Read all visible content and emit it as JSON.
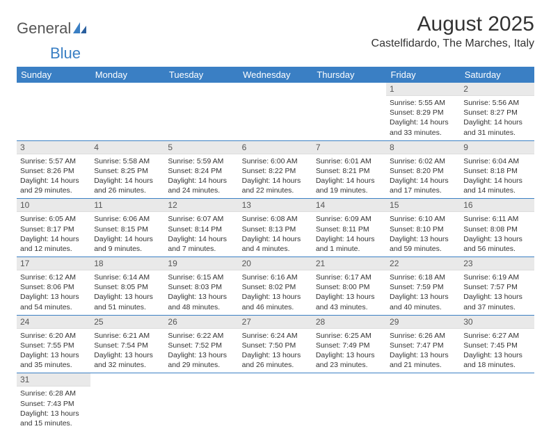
{
  "logo": {
    "text1": "General",
    "text2": "Blue"
  },
  "title": "August 2025",
  "location": "Castelfidardo, The Marches, Italy",
  "colors": {
    "header_bg": "#3a7fc4",
    "header_text": "#ffffff",
    "daynum_bg": "#e9e9e9",
    "cell_border": "#3a7fc4",
    "body_text": "#333333"
  },
  "weekdays": [
    "Sunday",
    "Monday",
    "Tuesday",
    "Wednesday",
    "Thursday",
    "Friday",
    "Saturday"
  ],
  "weeks": [
    [
      {
        "n": "",
        "lines": [
          "",
          "",
          "",
          ""
        ],
        "empty": true
      },
      {
        "n": "",
        "lines": [
          "",
          "",
          "",
          ""
        ],
        "empty": true
      },
      {
        "n": "",
        "lines": [
          "",
          "",
          "",
          ""
        ],
        "empty": true
      },
      {
        "n": "",
        "lines": [
          "",
          "",
          "",
          ""
        ],
        "empty": true
      },
      {
        "n": "",
        "lines": [
          "",
          "",
          "",
          ""
        ],
        "empty": true
      },
      {
        "n": "1",
        "lines": [
          "Sunrise: 5:55 AM",
          "Sunset: 8:29 PM",
          "Daylight: 14 hours",
          "and 33 minutes."
        ]
      },
      {
        "n": "2",
        "lines": [
          "Sunrise: 5:56 AM",
          "Sunset: 8:27 PM",
          "Daylight: 14 hours",
          "and 31 minutes."
        ]
      }
    ],
    [
      {
        "n": "3",
        "lines": [
          "Sunrise: 5:57 AM",
          "Sunset: 8:26 PM",
          "Daylight: 14 hours",
          "and 29 minutes."
        ]
      },
      {
        "n": "4",
        "lines": [
          "Sunrise: 5:58 AM",
          "Sunset: 8:25 PM",
          "Daylight: 14 hours",
          "and 26 minutes."
        ]
      },
      {
        "n": "5",
        "lines": [
          "Sunrise: 5:59 AM",
          "Sunset: 8:24 PM",
          "Daylight: 14 hours",
          "and 24 minutes."
        ]
      },
      {
        "n": "6",
        "lines": [
          "Sunrise: 6:00 AM",
          "Sunset: 8:22 PM",
          "Daylight: 14 hours",
          "and 22 minutes."
        ]
      },
      {
        "n": "7",
        "lines": [
          "Sunrise: 6:01 AM",
          "Sunset: 8:21 PM",
          "Daylight: 14 hours",
          "and 19 minutes."
        ]
      },
      {
        "n": "8",
        "lines": [
          "Sunrise: 6:02 AM",
          "Sunset: 8:20 PM",
          "Daylight: 14 hours",
          "and 17 minutes."
        ]
      },
      {
        "n": "9",
        "lines": [
          "Sunrise: 6:04 AM",
          "Sunset: 8:18 PM",
          "Daylight: 14 hours",
          "and 14 minutes."
        ]
      }
    ],
    [
      {
        "n": "10",
        "lines": [
          "Sunrise: 6:05 AM",
          "Sunset: 8:17 PM",
          "Daylight: 14 hours",
          "and 12 minutes."
        ]
      },
      {
        "n": "11",
        "lines": [
          "Sunrise: 6:06 AM",
          "Sunset: 8:15 PM",
          "Daylight: 14 hours",
          "and 9 minutes."
        ]
      },
      {
        "n": "12",
        "lines": [
          "Sunrise: 6:07 AM",
          "Sunset: 8:14 PM",
          "Daylight: 14 hours",
          "and 7 minutes."
        ]
      },
      {
        "n": "13",
        "lines": [
          "Sunrise: 6:08 AM",
          "Sunset: 8:13 PM",
          "Daylight: 14 hours",
          "and 4 minutes."
        ]
      },
      {
        "n": "14",
        "lines": [
          "Sunrise: 6:09 AM",
          "Sunset: 8:11 PM",
          "Daylight: 14 hours",
          "and 1 minute."
        ]
      },
      {
        "n": "15",
        "lines": [
          "Sunrise: 6:10 AM",
          "Sunset: 8:10 PM",
          "Daylight: 13 hours",
          "and 59 minutes."
        ]
      },
      {
        "n": "16",
        "lines": [
          "Sunrise: 6:11 AM",
          "Sunset: 8:08 PM",
          "Daylight: 13 hours",
          "and 56 minutes."
        ]
      }
    ],
    [
      {
        "n": "17",
        "lines": [
          "Sunrise: 6:12 AM",
          "Sunset: 8:06 PM",
          "Daylight: 13 hours",
          "and 54 minutes."
        ]
      },
      {
        "n": "18",
        "lines": [
          "Sunrise: 6:14 AM",
          "Sunset: 8:05 PM",
          "Daylight: 13 hours",
          "and 51 minutes."
        ]
      },
      {
        "n": "19",
        "lines": [
          "Sunrise: 6:15 AM",
          "Sunset: 8:03 PM",
          "Daylight: 13 hours",
          "and 48 minutes."
        ]
      },
      {
        "n": "20",
        "lines": [
          "Sunrise: 6:16 AM",
          "Sunset: 8:02 PM",
          "Daylight: 13 hours",
          "and 46 minutes."
        ]
      },
      {
        "n": "21",
        "lines": [
          "Sunrise: 6:17 AM",
          "Sunset: 8:00 PM",
          "Daylight: 13 hours",
          "and 43 minutes."
        ]
      },
      {
        "n": "22",
        "lines": [
          "Sunrise: 6:18 AM",
          "Sunset: 7:59 PM",
          "Daylight: 13 hours",
          "and 40 minutes."
        ]
      },
      {
        "n": "23",
        "lines": [
          "Sunrise: 6:19 AM",
          "Sunset: 7:57 PM",
          "Daylight: 13 hours",
          "and 37 minutes."
        ]
      }
    ],
    [
      {
        "n": "24",
        "lines": [
          "Sunrise: 6:20 AM",
          "Sunset: 7:55 PM",
          "Daylight: 13 hours",
          "and 35 minutes."
        ]
      },
      {
        "n": "25",
        "lines": [
          "Sunrise: 6:21 AM",
          "Sunset: 7:54 PM",
          "Daylight: 13 hours",
          "and 32 minutes."
        ]
      },
      {
        "n": "26",
        "lines": [
          "Sunrise: 6:22 AM",
          "Sunset: 7:52 PM",
          "Daylight: 13 hours",
          "and 29 minutes."
        ]
      },
      {
        "n": "27",
        "lines": [
          "Sunrise: 6:24 AM",
          "Sunset: 7:50 PM",
          "Daylight: 13 hours",
          "and 26 minutes."
        ]
      },
      {
        "n": "28",
        "lines": [
          "Sunrise: 6:25 AM",
          "Sunset: 7:49 PM",
          "Daylight: 13 hours",
          "and 23 minutes."
        ]
      },
      {
        "n": "29",
        "lines": [
          "Sunrise: 6:26 AM",
          "Sunset: 7:47 PM",
          "Daylight: 13 hours",
          "and 21 minutes."
        ]
      },
      {
        "n": "30",
        "lines": [
          "Sunrise: 6:27 AM",
          "Sunset: 7:45 PM",
          "Daylight: 13 hours",
          "and 18 minutes."
        ]
      }
    ],
    [
      {
        "n": "31",
        "lines": [
          "Sunrise: 6:28 AM",
          "Sunset: 7:43 PM",
          "Daylight: 13 hours",
          "and 15 minutes."
        ]
      },
      {
        "n": "",
        "lines": [
          "",
          "",
          "",
          ""
        ],
        "empty": true
      },
      {
        "n": "",
        "lines": [
          "",
          "",
          "",
          ""
        ],
        "empty": true
      },
      {
        "n": "",
        "lines": [
          "",
          "",
          "",
          ""
        ],
        "empty": true
      },
      {
        "n": "",
        "lines": [
          "",
          "",
          "",
          ""
        ],
        "empty": true
      },
      {
        "n": "",
        "lines": [
          "",
          "",
          "",
          ""
        ],
        "empty": true
      },
      {
        "n": "",
        "lines": [
          "",
          "",
          "",
          ""
        ],
        "empty": true
      }
    ]
  ]
}
